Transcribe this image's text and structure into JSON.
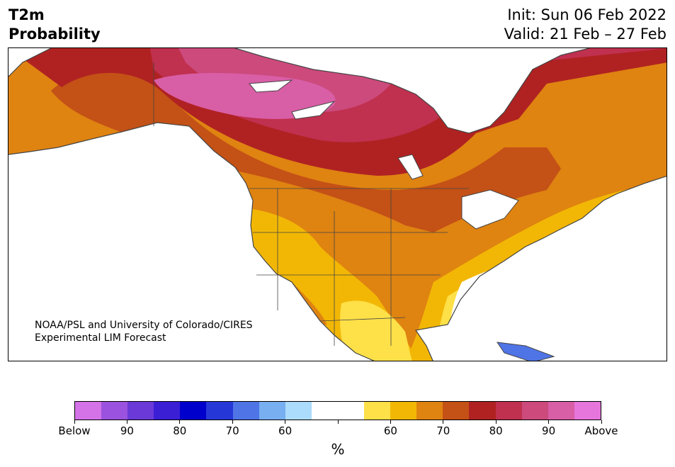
{
  "header": {
    "variable": "T2m",
    "product": "Probability",
    "init": "Init: Sun 06 Feb 2022",
    "valid": "Valid: 21 Feb – 27 Feb"
  },
  "credit": {
    "line1": "NOAA/PSL and University of Colorado/CIRES",
    "line2": "Experimental LIM Forecast"
  },
  "colorbar": {
    "colors": [
      "#d472e8",
      "#9b52de",
      "#6a39d8",
      "#3a1fd4",
      "#0000cc",
      "#2637d8",
      "#4f74e6",
      "#77aff0",
      "#acdcfc",
      "#ffffff",
      "#ffffff",
      "#fee048",
      "#f2b705",
      "#df8311",
      "#c45116",
      "#b02222",
      "#c0304f",
      "#cc4a7c",
      "#d85ea6",
      "#e675dc"
    ],
    "labels": [
      "Below",
      "90",
      "80",
      "70",
      "60",
      "60",
      "70",
      "80",
      "90",
      "Above"
    ],
    "unit": "%"
  },
  "map": {
    "land_outline_color": "#444444",
    "water_color": "#ffffff"
  }
}
